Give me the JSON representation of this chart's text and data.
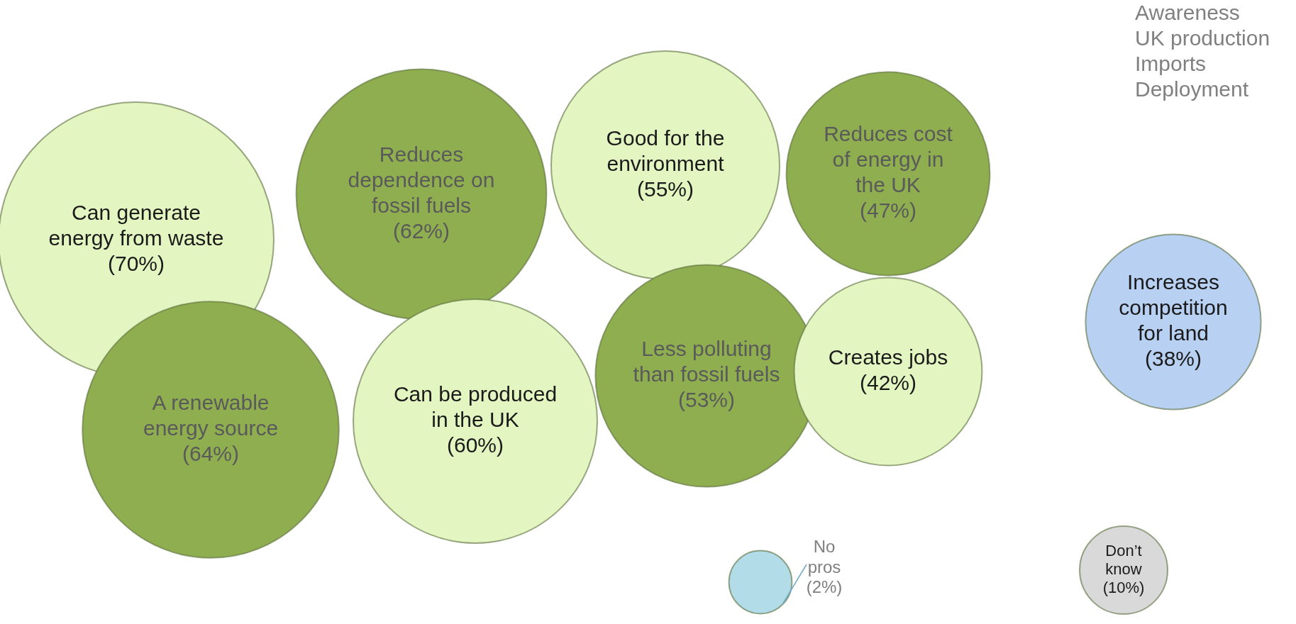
{
  "chart_data": {
    "type": "other",
    "categories": [
      "Can generate energy from waste",
      "Reduces dependence on fossil fuels",
      "Good for the environment",
      "Reduces cost of energy in the UK",
      "A renewable energy source",
      "Can be produced in the UK",
      "Less polluting than fossil fuels",
      "Creates jobs",
      "Increases competition for land",
      "No pros",
      "Don’t know"
    ],
    "values": [
      70,
      62,
      55,
      47,
      64,
      60,
      53,
      42,
      38,
      2,
      10
    ],
    "value_labels": [
      "(70%)",
      "(62%)",
      "(55%)",
      "(47%)",
      "(64%)",
      "(60%)",
      "(53%)",
      "(42%)",
      "(38%)",
      "(2%)",
      "(10%)"
    ],
    "colors": [
      "#e3f5c0",
      "#8fae4f",
      "#e3f5c0",
      "#8fae4f",
      "#8fae4f",
      "#e3f5c0",
      "#8fae4f",
      "#e3f5c0",
      "#b8d0f2",
      "#b2dde8",
      "#d9d9d9"
    ],
    "annotations": [
      "Awareness",
      "UK production",
      "Imports",
      "Deployment"
    ]
  }
}
